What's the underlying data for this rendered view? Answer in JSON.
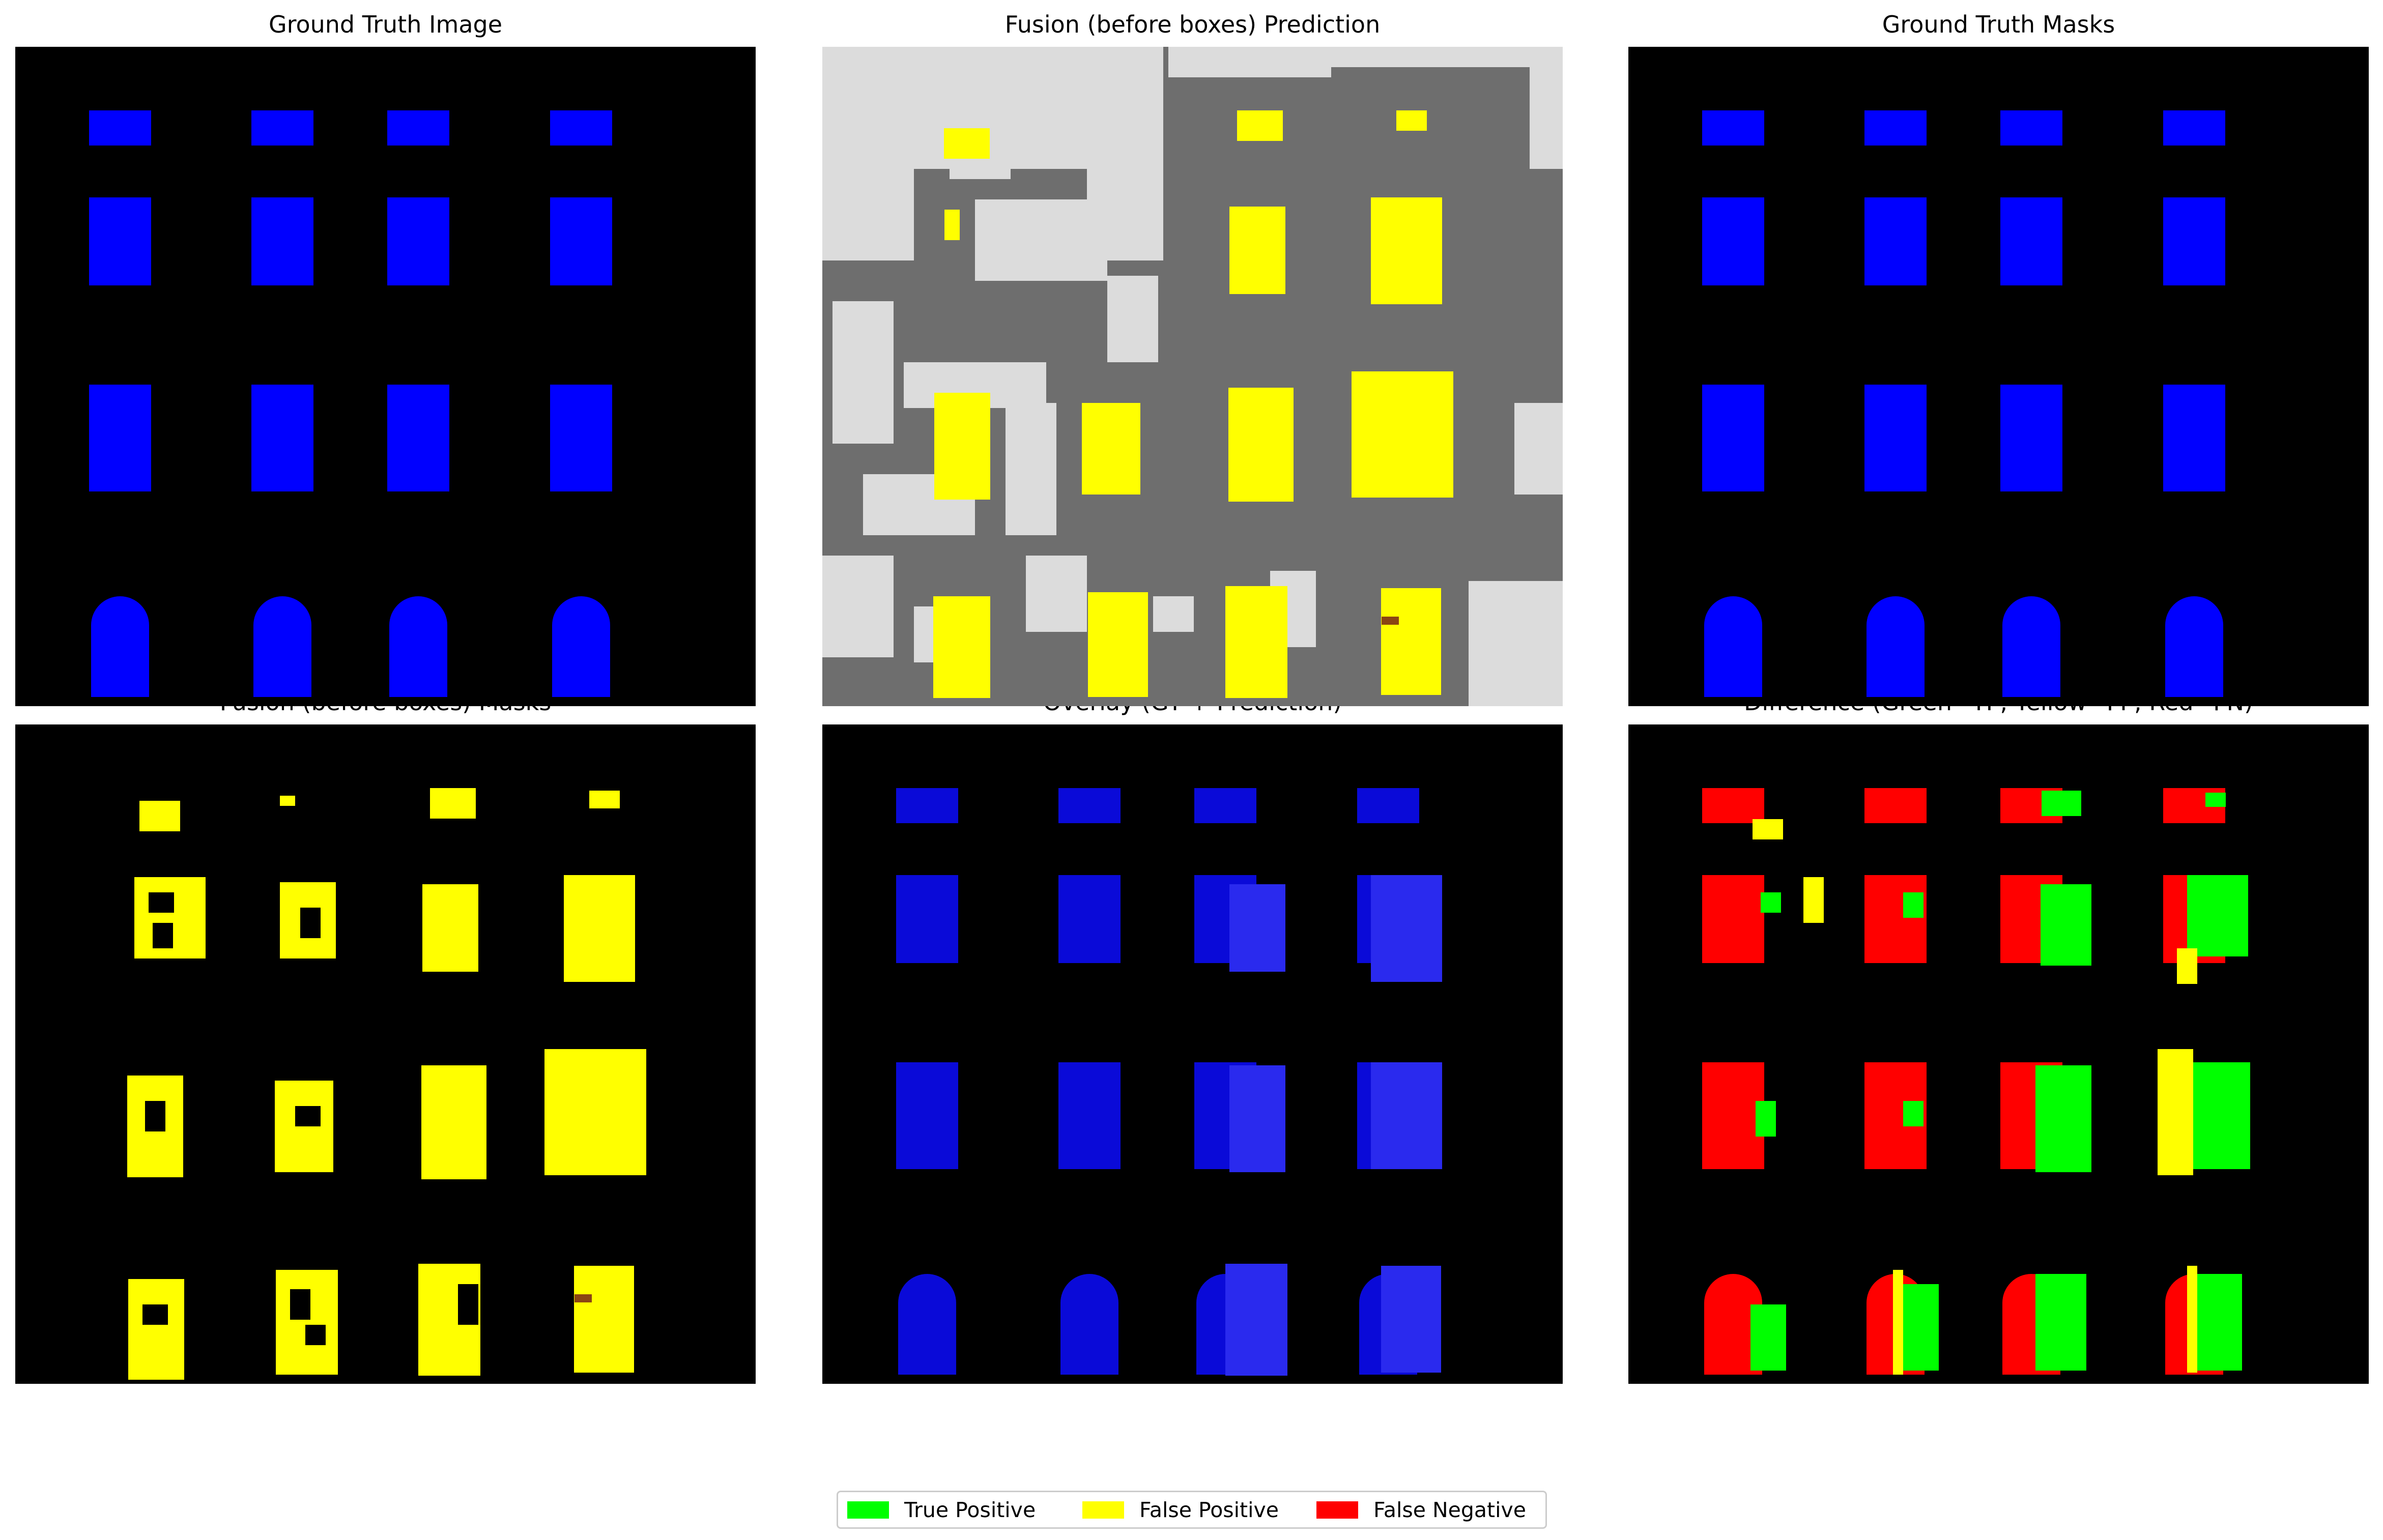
{
  "panels": [
    {
      "id": "gt-image",
      "title": "Ground Truth Image",
      "kind": "gt"
    },
    {
      "id": "fusion-prediction",
      "title": "Fusion (before boxes) Prediction",
      "kind": "pred"
    },
    {
      "id": "gt-masks",
      "title": "Ground Truth Masks",
      "kind": "gt"
    },
    {
      "id": "fusion-masks",
      "title": "Fusion (before boxes) Masks",
      "kind": "masks"
    },
    {
      "id": "overlay",
      "title": "Overlay (GT + Prediction)",
      "kind": "overlay"
    },
    {
      "id": "difference",
      "title": "Difference (Green=TP, Yellow=FP, Red=FN)",
      "kind": "diff"
    }
  ],
  "legend": [
    {
      "label": "True Positive",
      "color": "#00ff00"
    },
    {
      "label": "False Positive",
      "color": "#ffff00"
    },
    {
      "label": "False Negative",
      "color": "#ff0000"
    }
  ],
  "colors": {
    "background": "#000000",
    "window_gt": "#0000ff",
    "prediction_yellow": "#ffff00",
    "prediction_dark_gray": "#6e6e6e",
    "prediction_light_gray": "#dcdcdc",
    "overlay_blue": "#0a0ad8",
    "overlay_light_blue": "#2a2aee",
    "true_positive": "#00ff00",
    "false_positive": "#ffff00",
    "false_negative": "#ff0000"
  }
}
